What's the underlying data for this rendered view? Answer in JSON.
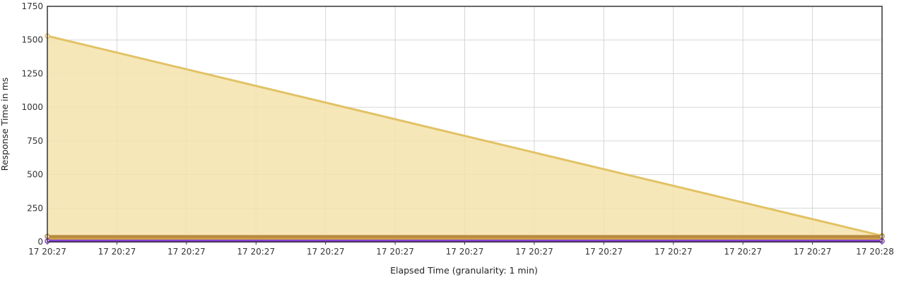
{
  "chart_data": {
    "type": "area",
    "title": "",
    "xlabel": "Elapsed Time (granularity: 1 min)",
    "ylabel": "Response Time in ms",
    "ylim": [
      0,
      1750
    ],
    "y_ticks": [
      0,
      250,
      500,
      750,
      1000,
      1250,
      1500,
      1750
    ],
    "x_tick_labels": [
      "17 20:27",
      "17 20:27",
      "17 20:27",
      "17 20:27",
      "17 20:27",
      "17 20:27",
      "17 20:27",
      "17 20:27",
      "17 20:27",
      "17 20:27",
      "17 20:27",
      "17 20:27",
      "17 20:28"
    ],
    "grid": true,
    "legend": "none",
    "series": [
      {
        "x": [
          "17 20:27",
          "17 20:28"
        ],
        "values": [
          1530,
          45
        ],
        "color": "#e2c264",
        "fill": "#f5e3ad"
      },
      {
        "x": [
          "17 20:27",
          "17 20:28"
        ],
        "values": [
          40,
          40
        ],
        "color": "#b98a3e",
        "fill": "#c99a4a"
      },
      {
        "x": [
          "17 20:27",
          "17 20:28"
        ],
        "values": [
          5,
          5
        ],
        "color": "#8a3fd6",
        "fill": "#b07ee8"
      }
    ]
  }
}
